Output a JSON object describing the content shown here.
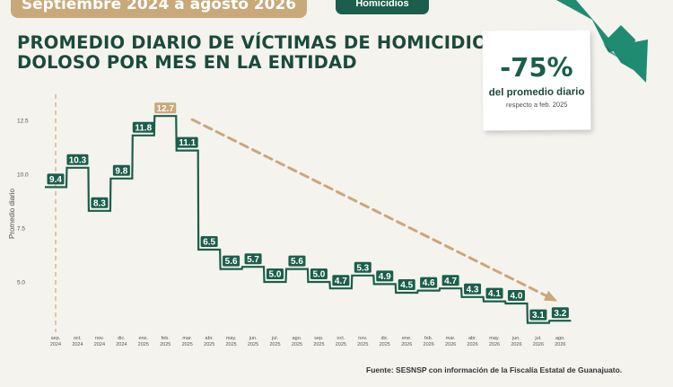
{
  "header": {
    "period_tab": "Septiembre 2024 a agosto 2026",
    "topic_tab": "Homicidios",
    "title_line1": "PROMEDIO DIARIO DE VÍCTIMAS DE HOMICIDIO",
    "title_line2": "DOLOSO POR MES EN LA ENTIDAD"
  },
  "stat_card": {
    "value": "-75%",
    "label": "del promedio diario",
    "sublabel": "respecto a feb. 2025",
    "icon": "downward-trend-arrow-icon"
  },
  "source": "Fuente: SESNSP con información de la Fiscalía Estatal de Guanajuato.",
  "colors": {
    "primary_green": "#1b5e4b",
    "gold": "#c9a879",
    "arrow_green": "#1f8c72",
    "background": "#f5f3ee"
  },
  "chart_data": {
    "type": "line",
    "style": "step",
    "ylabel": "Promedio diario",
    "xlabel": "",
    "ylim": [
      3.5,
      13.5
    ],
    "yticks": [
      "12.5",
      "10.0",
      "7.5",
      "5.0"
    ],
    "ytick_values": [
      12.5,
      10.0,
      7.5,
      5.0
    ],
    "grid": false,
    "categories": [
      [
        "sep.",
        "2024"
      ],
      [
        "oct.",
        "2024"
      ],
      [
        "nov.",
        "2024"
      ],
      [
        "dic.",
        "2024"
      ],
      [
        "ene.",
        "2025"
      ],
      [
        "feb.",
        "2025"
      ],
      [
        "mar.",
        "2025"
      ],
      [
        "abr.",
        "2025"
      ],
      [
        "may.",
        "2025"
      ],
      [
        "jun.",
        "2025"
      ],
      [
        "jul.",
        "2025"
      ],
      [
        "ago.",
        "2025"
      ],
      [
        "sep.",
        "2025"
      ],
      [
        "oct.",
        "2025"
      ],
      [
        "nov.",
        "2025"
      ],
      [
        "dic.",
        "2025"
      ],
      [
        "ene.",
        "2026"
      ],
      [
        "feb.",
        "2026"
      ],
      [
        "mar.",
        "2026"
      ],
      [
        "abr.",
        "2026"
      ],
      [
        "may.",
        "2026"
      ],
      [
        "jun.",
        "2026"
      ],
      [
        "jul.",
        "2026"
      ],
      [
        "ago.",
        "2026"
      ]
    ],
    "values": [
      9.4,
      10.3,
      8.3,
      9.8,
      11.8,
      12.7,
      11.1,
      6.5,
      5.6,
      5.7,
      5.0,
      5.6,
      5.0,
      4.7,
      5.3,
      4.9,
      4.5,
      4.6,
      4.7,
      4.3,
      4.1,
      4.0,
      3.1,
      3.2
    ],
    "data_labels": [
      "9.4",
      "10.3",
      "8.3",
      "9.8",
      "11.8",
      "12.7",
      "11.1",
      "6.5",
      "5.6",
      "5.7",
      "5.0",
      "5.6",
      "5.0",
      "4.7",
      "5.3",
      "4.9",
      "4.5",
      "4.6",
      "4.7",
      "4.3",
      "4.1",
      "4.0",
      "3.1",
      "3.2"
    ],
    "highlight_index": 5,
    "reference_line_index": 0,
    "trend_arrow": {
      "from_index": 5,
      "to_index": 23
    }
  }
}
